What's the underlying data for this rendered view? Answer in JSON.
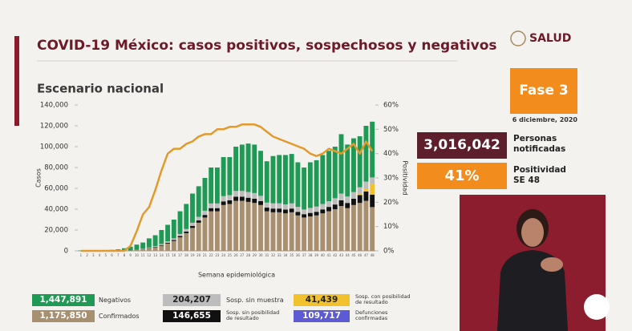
{
  "header": {
    "title": "COVID-19 México: casos positivos, sospechosos y negativos",
    "subtitle": "Escenario nacional",
    "logo": "SALUD"
  },
  "panel": {
    "phase": "Fase 3",
    "date": "6 diciembre, 2020",
    "notified": {
      "value": 3016042,
      "label": "3,016,042"
    },
    "notified_text": "Personas notificadas",
    "positivity": {
      "value": 41,
      "label": "41%"
    },
    "positivity_text": "Positividad SE 48"
  },
  "chart_data": {
    "type": "bar",
    "stacked": true,
    "ylabel": "Casos",
    "y2label": "Positividad",
    "xlabel": "Semana epidemiológica",
    "categories": [
      1,
      2,
      3,
      4,
      5,
      6,
      7,
      8,
      9,
      10,
      11,
      12,
      13,
      14,
      15,
      16,
      17,
      18,
      19,
      20,
      21,
      22,
      23,
      24,
      25,
      26,
      27,
      28,
      29,
      30,
      31,
      32,
      33,
      34,
      35,
      36,
      37,
      38,
      39,
      40,
      41,
      42,
      43,
      44,
      45,
      46,
      47,
      48
    ],
    "ylim": [
      0,
      140000
    ],
    "yticks": [
      0,
      {
        "value": 20000,
        "label": "20,000"
      },
      {
        "value": 40000,
        "label": "40,000"
      },
      {
        "value": 60000,
        "label": "60,000"
      },
      {
        "value": 80000,
        "label": "80,000"
      },
      {
        "value": 100000,
        "label": "100,000"
      },
      {
        "value": 120000,
        "label": "120,000"
      },
      {
        "value": 140000,
        "label": "140,000"
      }
    ],
    "y2lim": [
      0,
      60
    ],
    "y2ticks": [
      {
        "value": 0,
        "label": "0%"
      },
      {
        "value": 10,
        "label": "10%"
      },
      {
        "value": 20,
        "label": "20%"
      },
      {
        "value": 30,
        "label": "30%"
      },
      {
        "value": 40,
        "label": "40%"
      },
      {
        "value": 50,
        "label": "50%"
      },
      {
        "value": 60,
        "label": "60%"
      }
    ],
    "series": [
      {
        "name": "Confirmados",
        "color": "#a88f70",
        "total": 1175850,
        "total_label": "1,175,850",
        "values": [
          0,
          0,
          0,
          0,
          0,
          0,
          50,
          200,
          400,
          800,
          1500,
          2500,
          3500,
          5000,
          7000,
          9500,
          13000,
          17000,
          22000,
          27000,
          32000,
          38000,
          38000,
          44000,
          45000,
          48000,
          48000,
          47000,
          46000,
          44000,
          38000,
          37000,
          37000,
          36000,
          37000,
          34000,
          32000,
          33000,
          34000,
          36000,
          38000,
          40000,
          43000,
          41000,
          44000,
          46000,
          48000,
          42000
        ]
      },
      {
        "name": "Sosp. sin posibilidad de resultado",
        "color": "#111111",
        "total": 146655,
        "total_label": "146,655",
        "values": [
          0,
          0,
          0,
          0,
          0,
          0,
          0,
          0,
          0,
          100,
          200,
          300,
          400,
          600,
          800,
          1000,
          1200,
          1500,
          2000,
          2200,
          2500,
          3000,
          3000,
          3500,
          3500,
          4000,
          4000,
          4000,
          4000,
          3800,
          3500,
          3600,
          3600,
          3600,
          3600,
          3400,
          3200,
          3400,
          3500,
          3800,
          4200,
          4500,
          5500,
          5000,
          6000,
          7500,
          9000,
          12000
        ]
      },
      {
        "name": "Sosp. con posibilidad de resultado",
        "color": "#f2c12e",
        "total": 41439,
        "total_label": "41,439",
        "values": [
          0,
          0,
          0,
          0,
          0,
          0,
          0,
          0,
          0,
          0,
          0,
          0,
          0,
          0,
          0,
          0,
          0,
          0,
          0,
          0,
          0,
          0,
          0,
          0,
          0,
          0,
          0,
          0,
          0,
          0,
          0,
          0,
          0,
          0,
          0,
          0,
          0,
          0,
          0,
          0,
          0,
          0,
          0,
          0,
          0,
          1000,
          3000,
          10000
        ]
      },
      {
        "name": "Sosp. sin muestra",
        "color": "#bdbdbd",
        "total": 204207,
        "total_label": "204,207",
        "values": [
          0,
          0,
          0,
          0,
          0,
          0,
          0,
          0,
          0,
          100,
          300,
          500,
          700,
          1000,
          1300,
          1500,
          2000,
          2500,
          3000,
          3500,
          4000,
          4500,
          4500,
          5000,
          5000,
          5500,
          5500,
          5500,
          5500,
          5000,
          4800,
          5000,
          5000,
          5000,
          5000,
          4800,
          4500,
          4800,
          5000,
          5200,
          5500,
          6000,
          6500,
          6200,
          6500,
          6500,
          6500,
          6500
        ]
      },
      {
        "name": "Negativos",
        "color": "#1f9a55",
        "total": 1447891,
        "total_label": "1,447,891",
        "values": [
          300,
          400,
          500,
          600,
          800,
          1000,
          1450,
          2300,
          3600,
          5000,
          6000,
          8700,
          10400,
          13400,
          15900,
          18000,
          21800,
          24000,
          28000,
          29300,
          31500,
          34500,
          34500,
          37500,
          36500,
          42500,
          44500,
          46500,
          46500,
          43200,
          39700,
          45400,
          46400,
          47400,
          47400,
          42800,
          40300,
          43800,
          44500,
          47000,
          48300,
          49500,
          57000,
          49800,
          51500,
          49000,
          53500,
          53500
        ]
      },
      {
        "type": "line",
        "axis": "y2",
        "color": "#e39a2a",
        "values": [
          0,
          0,
          0,
          0,
          0,
          0,
          0,
          0,
          2,
          8,
          15,
          18,
          25,
          33,
          40,
          42,
          42,
          44,
          45,
          47,
          48,
          48,
          50,
          50,
          51,
          51,
          52,
          52,
          52,
          51,
          49,
          47,
          46,
          45,
          44,
          43,
          42,
          40,
          39,
          40,
          42,
          41,
          40,
          42,
          44,
          40,
          45,
          41
        ]
      }
    ],
    "legend_extra": [
      {
        "name": "Defunciones confirmadas",
        "color": "#5d5bd4",
        "total": 109717,
        "total_label": "109,717"
      }
    ]
  }
}
